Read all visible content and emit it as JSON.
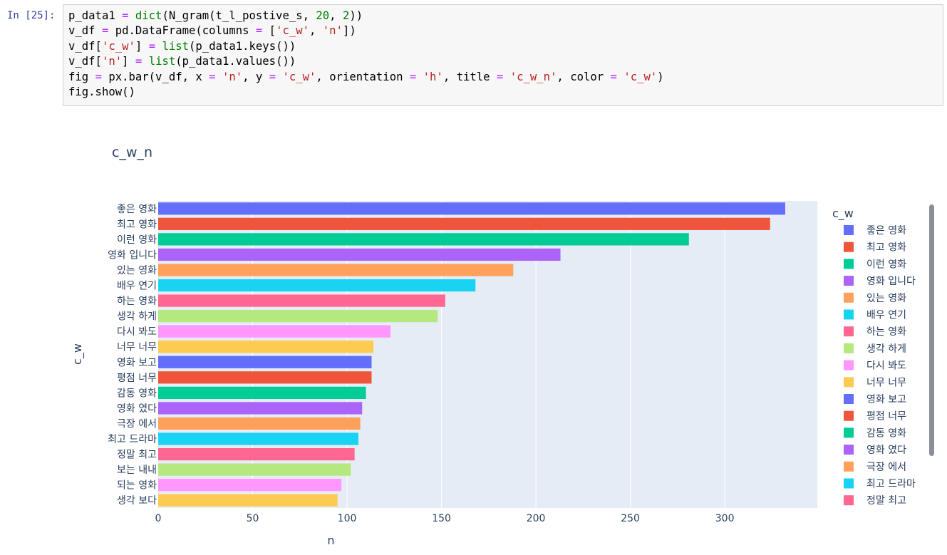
{
  "cell": {
    "prompt": "In [25]:",
    "lines": [
      [
        [
          "p_data1 ",
          "t"
        ],
        [
          "=",
          "op"
        ],
        [
          " ",
          "t"
        ],
        [
          "dict",
          "fn"
        ],
        [
          "(N_gram(t_l_postive_s, ",
          "t"
        ],
        [
          "20",
          "num"
        ],
        [
          ", ",
          "t"
        ],
        [
          "2",
          "num"
        ],
        [
          "))",
          "t"
        ]
      ],
      [
        [
          "v_df ",
          "t"
        ],
        [
          "=",
          "op"
        ],
        [
          " pd.DataFrame(columns ",
          "t"
        ],
        [
          "=",
          "op"
        ],
        [
          " [",
          "t"
        ],
        [
          "'c_w'",
          "str"
        ],
        [
          ", ",
          "t"
        ],
        [
          "'n'",
          "str"
        ],
        [
          "])",
          "t"
        ]
      ],
      [
        [
          "v_df[",
          "t"
        ],
        [
          "'c_w'",
          "str"
        ],
        [
          "] ",
          "t"
        ],
        [
          "=",
          "op"
        ],
        [
          " ",
          "t"
        ],
        [
          "list",
          "fn"
        ],
        [
          "(p_data1.keys())",
          "t"
        ]
      ],
      [
        [
          "v_df[",
          "t"
        ],
        [
          "'n'",
          "str"
        ],
        [
          "] ",
          "t"
        ],
        [
          "=",
          "op"
        ],
        [
          " ",
          "t"
        ],
        [
          "list",
          "fn"
        ],
        [
          "(p_data1.values())",
          "t"
        ]
      ],
      [
        [
          "fig ",
          "t"
        ],
        [
          "=",
          "op"
        ],
        [
          " px.bar(v_df, x ",
          "t"
        ],
        [
          "=",
          "op"
        ],
        [
          " ",
          "t"
        ],
        [
          "'n'",
          "str"
        ],
        [
          ", y ",
          "t"
        ],
        [
          "=",
          "op"
        ],
        [
          " ",
          "t"
        ],
        [
          "'c_w'",
          "str"
        ],
        [
          ", orientation ",
          "t"
        ],
        [
          "=",
          "op"
        ],
        [
          " ",
          "t"
        ],
        [
          "'h'",
          "str"
        ],
        [
          ", title ",
          "t"
        ],
        [
          "=",
          "op"
        ],
        [
          " ",
          "t"
        ],
        [
          "'c_w_n'",
          "str"
        ],
        [
          ", color ",
          "t"
        ],
        [
          "=",
          "op"
        ],
        [
          " ",
          "t"
        ],
        [
          "'c_w'",
          "str"
        ],
        [
          ")",
          "t"
        ]
      ],
      [
        [
          "fig.show()",
          "t"
        ]
      ]
    ]
  },
  "chart_data": {
    "type": "bar",
    "orientation": "h",
    "title": "c_w_n",
    "xlabel": "n",
    "ylabel": "c_w",
    "legend_title": "c_w",
    "legend_placement": "right",
    "xlim": [
      0,
      349
    ],
    "xticks": [
      0,
      50,
      100,
      150,
      200,
      250,
      300
    ],
    "grid": true,
    "categories": [
      "좋은 영화",
      "최고 영화",
      "이런 영화",
      "영화 입니다",
      "있는 영화",
      "배우 연기",
      "하는 영화",
      "생각 하게",
      "다시 봐도",
      "너무 너무",
      "영화 보고",
      "평점 너무",
      "감동 영화",
      "영화 였다",
      "극장 에서",
      "최고 드라마",
      "정말 최고",
      "보는 내내",
      "되는 영화",
      "생각 보다"
    ],
    "values": [
      332,
      324,
      281,
      213,
      188,
      168,
      152,
      148,
      123,
      114,
      113,
      113,
      110,
      108,
      107,
      106,
      104,
      102,
      97,
      95
    ],
    "colors": [
      "#636efa",
      "#ef553b",
      "#00cc96",
      "#ab63fa",
      "#ffa15a",
      "#19d3f3",
      "#ff6692",
      "#b6e880",
      "#ff97ff",
      "#fecb52",
      "#636efa",
      "#ef553b",
      "#00cc96",
      "#ab63fa",
      "#ffa15a",
      "#19d3f3",
      "#ff6692",
      "#b6e880",
      "#ff97ff",
      "#fecb52"
    ],
    "legend_visible_count": 17
  }
}
